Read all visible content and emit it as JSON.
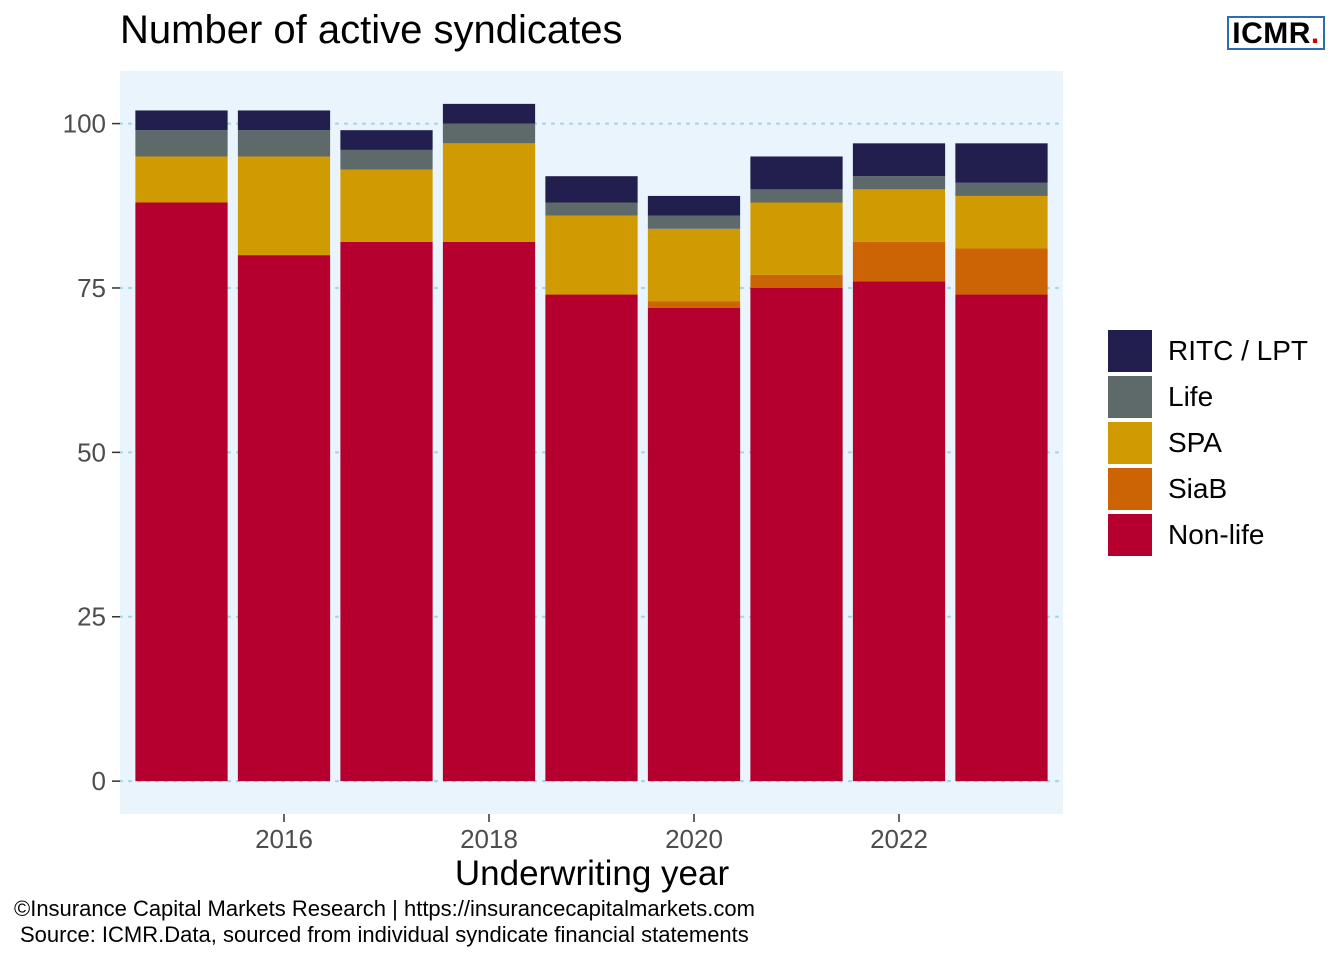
{
  "title": "Number of active syndicates",
  "logo": {
    "text": "ICMR",
    "dot": "."
  },
  "xlabel": "Underwriting year",
  "footer": {
    "line1": "©Insurance Capital Markets Research | https://insurancecapitalmarkets.com",
    "line2": "Source: ICMR.Data, sourced from individual syndicate financial statements"
  },
  "colors": {
    "panel_background": "#eaf4fc",
    "gridline": "#a6d6e6",
    "logo_border": "#2e6bb0",
    "logo_dot": "#d00000"
  },
  "chart_data": {
    "type": "bar",
    "stacked": true,
    "title": "Number of active syndicates",
    "xlabel": "Underwriting year",
    "ylabel": "",
    "categories": [
      2015,
      2016,
      2017,
      2018,
      2019,
      2020,
      2021,
      2022,
      2023
    ],
    "x_ticks": [
      2016,
      2018,
      2020,
      2022
    ],
    "ylim": [
      -5,
      108
    ],
    "y_ticks": [
      0,
      25,
      50,
      75,
      100
    ],
    "grid": "horizontal dotted",
    "legend_position": "right",
    "series": [
      {
        "name": "Non-life",
        "color": "#b5002f",
        "values": [
          88,
          80,
          82,
          82,
          74,
          72,
          75,
          76,
          74
        ]
      },
      {
        "name": "SiaB",
        "color": "#cc6304",
        "values": [
          0,
          0,
          0,
          0,
          0,
          1,
          2,
          6,
          7
        ]
      },
      {
        "name": "SPA",
        "color": "#d09a03",
        "values": [
          7,
          15,
          11,
          15,
          12,
          11,
          11,
          8,
          8
        ]
      },
      {
        "name": "Life",
        "color": "#5d6a69",
        "values": [
          4,
          4,
          3,
          3,
          2,
          2,
          2,
          2,
          2
        ]
      },
      {
        "name": "RITC / LPT",
        "color": "#221e4d",
        "values": [
          3,
          3,
          3,
          3,
          4,
          3,
          5,
          5,
          6
        ]
      }
    ],
    "legend_order": [
      "RITC / LPT",
      "Life",
      "SPA",
      "SiaB",
      "Non-life"
    ]
  }
}
